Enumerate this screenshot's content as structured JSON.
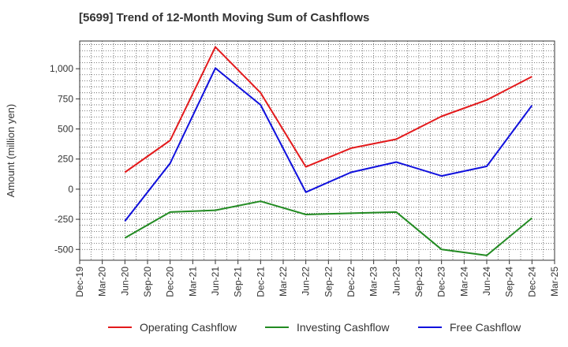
{
  "chart_data": {
    "type": "line",
    "title": "[5699]  Trend of 12-Month Moving Sum of Cashflows",
    "xlabel": "",
    "ylabel": "Amount (million yen)",
    "categories": [
      "Dec-19",
      "Mar-20",
      "Jun-20",
      "Sep-20",
      "Dec-20",
      "Mar-21",
      "Jun-21",
      "Sep-21",
      "Dec-21",
      "Mar-22",
      "Jun-22",
      "Sep-22",
      "Dec-22",
      "Mar-23",
      "Jun-23",
      "Sep-23",
      "Dec-23",
      "Mar-24",
      "Jun-24",
      "Sep-24",
      "Dec-24",
      "Mar-25"
    ],
    "ylim": [
      -590,
      1230
    ],
    "yticks": [
      -500,
      -250,
      0,
      250,
      500,
      750,
      1000
    ],
    "ytick_labels": [
      "-500",
      "-250",
      "0",
      "250",
      "500",
      "750",
      "1,000"
    ],
    "grid": true,
    "legend_position": "bottom",
    "series": [
      {
        "name": "Operating Cashflow",
        "color": "#e31a1c",
        "values": [
          null,
          null,
          140,
          null,
          405,
          null,
          1180,
          null,
          800,
          null,
          185,
          null,
          340,
          null,
          415,
          null,
          605,
          null,
          740,
          null,
          935,
          null
        ]
      },
      {
        "name": "Investing Cashflow",
        "color": "#228b22",
        "values": [
          null,
          null,
          -405,
          null,
          -190,
          null,
          -175,
          null,
          -100,
          null,
          -210,
          null,
          -200,
          null,
          -190,
          null,
          -500,
          null,
          -550,
          null,
          -240,
          null
        ]
      },
      {
        "name": "Free Cashflow",
        "color": "#1010dd",
        "values": [
          null,
          null,
          -265,
          null,
          215,
          null,
          1005,
          null,
          700,
          null,
          -25,
          null,
          140,
          null,
          225,
          null,
          110,
          null,
          190,
          null,
          695,
          null
        ]
      }
    ]
  }
}
